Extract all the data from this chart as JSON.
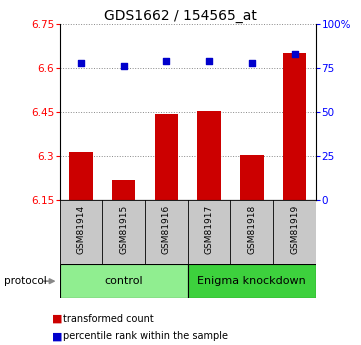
{
  "title": "GDS1662 / 154565_at",
  "samples": [
    "GSM81914",
    "GSM81915",
    "GSM81916",
    "GSM81917",
    "GSM81918",
    "GSM81919"
  ],
  "red_values": [
    6.315,
    6.22,
    6.445,
    6.455,
    6.305,
    6.65
  ],
  "blue_values": [
    78,
    76,
    79,
    79,
    78,
    83
  ],
  "ylim_left": [
    6.15,
    6.75
  ],
  "ylim_right": [
    0,
    100
  ],
  "yticks_left": [
    6.15,
    6.3,
    6.45,
    6.6,
    6.75
  ],
  "ytick_labels_left": [
    "6.15",
    "6.3",
    "6.45",
    "6.6",
    "6.75"
  ],
  "yticks_right": [
    0,
    25,
    50,
    75,
    100
  ],
  "ytick_labels_right": [
    "0",
    "25",
    "50",
    "75",
    "100%"
  ],
  "groups": [
    {
      "label": "control",
      "start": 0,
      "end": 3,
      "color": "#90ee90"
    },
    {
      "label": "Enigma knockdown",
      "start": 3,
      "end": 6,
      "color": "#3dd13d"
    }
  ],
  "protocol_label": "protocol",
  "legend": [
    "transformed count",
    "percentile rank within the sample"
  ],
  "bar_color": "#cc0000",
  "dot_color": "#0000cc",
  "bar_base": 6.15,
  "background_color": "#ffffff",
  "grid_color": "#888888",
  "sample_bg_color": "#c8c8c8",
  "title_fontsize": 10,
  "tick_fontsize": 7.5,
  "legend_fontsize": 7,
  "sample_fontsize": 6.5,
  "group_fontsize": 8
}
